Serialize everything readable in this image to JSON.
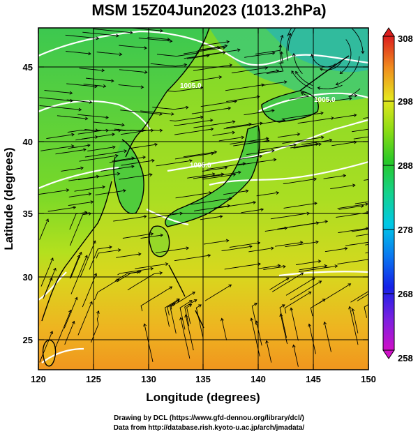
{
  "title": "MSM 15Z04Jun2023 (1013.2hPa)",
  "map": {
    "x_axis_label": "Longitude (degrees)",
    "y_axis_label": "Latitude  (degrees)",
    "lon_range": [
      120,
      150
    ],
    "lat_range": [
      22.4,
      47.6
    ],
    "lon_ticks": [
      "120",
      "125",
      "130",
      "135",
      "140",
      "145",
      "150"
    ],
    "lat_ticks": [
      "25",
      "30",
      "35",
      "40",
      "45"
    ],
    "contour_labels": [
      "1005.0",
      "1005.0",
      "1005.0"
    ],
    "field": "temperature (K) shaded with wind streamlines and white pressure contours"
  },
  "colorbar": {
    "labels": [
      "308",
      "298",
      "288",
      "278",
      "268",
      "258"
    ],
    "min": 258,
    "max": 308,
    "colors": [
      "#c800c8",
      "#1414e6",
      "#00b4f0",
      "#00dc96",
      "#28c828",
      "#8cdc14",
      "#e6e61e",
      "#f0b41e",
      "#f06e1e",
      "#dc1e1e"
    ]
  },
  "credits": {
    "line1": "Drawing by DCL (https://www.gfd-dennou.org/library/dcl/)",
    "line2": "Data from http://database.rish.kyoto-u.ac.jp/arch/jmadata/"
  }
}
